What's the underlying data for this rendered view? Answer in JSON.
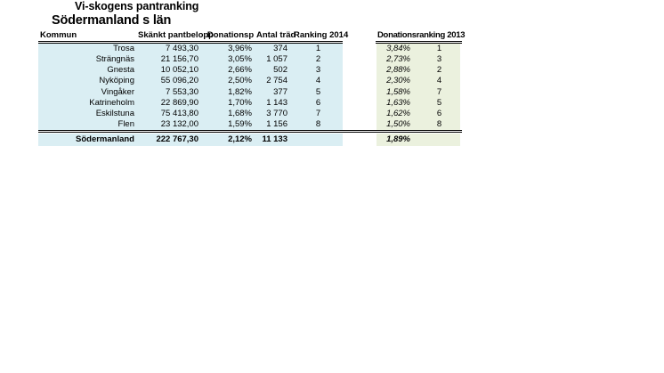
{
  "page": {
    "title": "Vi-skogens pantranking",
    "subtitle": "Södermanland s län"
  },
  "left_table": {
    "headers": {
      "kommun": "Kommun",
      "amount": "Skänkt pantbelopp",
      "percent": "Donationsp",
      "trees": "Antal träd",
      "ranking": "Ranking 2014"
    },
    "rows": [
      {
        "kommun": "Trosa",
        "amount": "7 493,30",
        "percent": "3,96%",
        "trees": "374",
        "rank": "1"
      },
      {
        "kommun": "Strängnäs",
        "amount": "21 156,70",
        "percent": "3,05%",
        "trees": "1 057",
        "rank": "2"
      },
      {
        "kommun": "Gnesta",
        "amount": "10 052,10",
        "percent": "2,66%",
        "trees": "502",
        "rank": "3"
      },
      {
        "kommun": "Nyköping",
        "amount": "55 096,20",
        "percent": "2,50%",
        "trees": "2 754",
        "rank": "4"
      },
      {
        "kommun": "Vingåker",
        "amount": "7 553,30",
        "percent": "1,82%",
        "trees": "377",
        "rank": "5"
      },
      {
        "kommun": "Katrineholm",
        "amount": "22 869,90",
        "percent": "1,70%",
        "trees": "1 143",
        "rank": "6"
      },
      {
        "kommun": "Eskilstuna",
        "amount": "75 413,80",
        "percent": "1,68%",
        "trees": "3 770",
        "rank": "7"
      },
      {
        "kommun": "Flen",
        "amount": "23 132,00",
        "percent": "1,59%",
        "trees": "1 156",
        "rank": "8"
      }
    ],
    "total": {
      "kommun": "Södermanland",
      "amount": "222 767,30",
      "percent": "2,12%",
      "trees": "11 133",
      "rank": ""
    }
  },
  "right_table": {
    "header": "Donationsranking 2013",
    "rows": [
      {
        "percent": "3,84%",
        "rank": "1"
      },
      {
        "percent": "2,73%",
        "rank": "3"
      },
      {
        "percent": "2,88%",
        "rank": "2"
      },
      {
        "percent": "2,30%",
        "rank": "4"
      },
      {
        "percent": "1,58%",
        "rank": "7"
      },
      {
        "percent": "1,63%",
        "rank": "5"
      },
      {
        "percent": "1,62%",
        "rank": "6"
      },
      {
        "percent": "1,50%",
        "rank": "8"
      }
    ],
    "total": {
      "percent": "1,89%",
      "rank": ""
    }
  },
  "colors": {
    "left_table_fill": "#DAEEF3",
    "right_table_fill": "#EBF1DE",
    "rule_color": "#000000",
    "text_color": "#000000"
  }
}
